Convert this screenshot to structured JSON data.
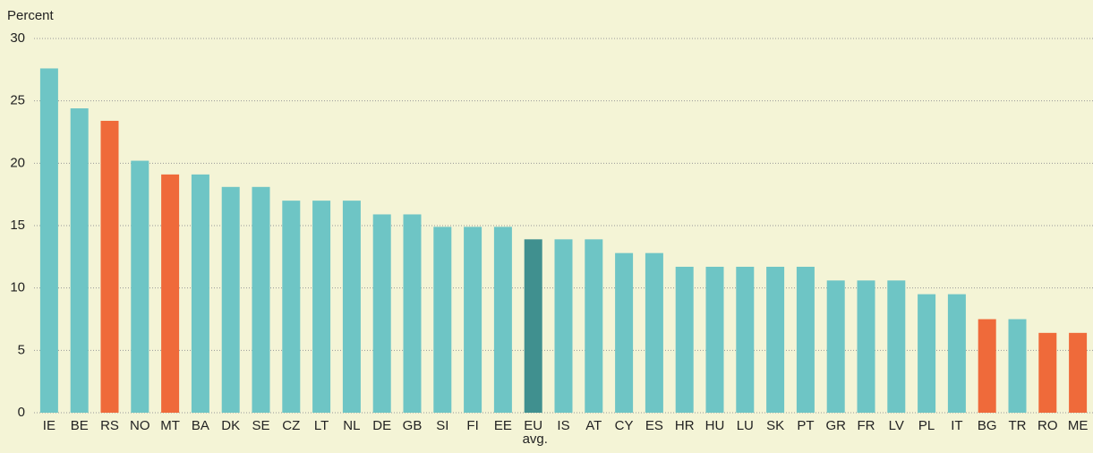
{
  "chart_data": {
    "type": "bar",
    "y_label": "Percent",
    "categories": [
      "IE",
      "BE",
      "RS",
      "NO",
      "MT",
      "BA",
      "DK",
      "SE",
      "CZ",
      "LT",
      "NL",
      "DE",
      "GB",
      "SI",
      "FI",
      "EE",
      "EU avg.",
      "IS",
      "AT",
      "CY",
      "ES",
      "HR",
      "HU",
      "LU",
      "SK",
      "PT",
      "GR",
      "FR",
      "LV",
      "PL",
      "IT",
      "BG",
      "TR",
      "RO",
      "ME"
    ],
    "values": [
      27.6,
      24.4,
      23.4,
      20.2,
      19.1,
      19.1,
      18.1,
      18.1,
      17.0,
      17.0,
      17.0,
      15.9,
      15.9,
      14.9,
      14.9,
      14.9,
      13.9,
      13.9,
      13.9,
      12.8,
      12.8,
      11.7,
      11.7,
      11.7,
      11.7,
      11.7,
      10.6,
      10.6,
      10.6,
      9.5,
      9.5,
      7.5,
      7.5,
      6.4,
      6.4
    ],
    "colors": [
      "#6ec5c5",
      "#6ec5c5",
      "#ef6a3a",
      "#6ec5c5",
      "#ef6a3a",
      "#6ec5c5",
      "#6ec5c5",
      "#6ec5c5",
      "#6ec5c5",
      "#6ec5c5",
      "#6ec5c5",
      "#6ec5c5",
      "#6ec5c5",
      "#6ec5c5",
      "#6ec5c5",
      "#6ec5c5",
      "#40908f",
      "#6ec5c5",
      "#6ec5c5",
      "#6ec5c5",
      "#6ec5c5",
      "#6ec5c5",
      "#6ec5c5",
      "#6ec5c5",
      "#6ec5c5",
      "#6ec5c5",
      "#6ec5c5",
      "#6ec5c5",
      "#6ec5c5",
      "#6ec5c5",
      "#6ec5c5",
      "#ef6a3a",
      "#6ec5c5",
      "#ef6a3a",
      "#ef6a3a"
    ],
    "ylim": [
      0,
      30
    ],
    "yticks": [
      0,
      5,
      10,
      15,
      20,
      25,
      30
    ],
    "grid": true
  }
}
